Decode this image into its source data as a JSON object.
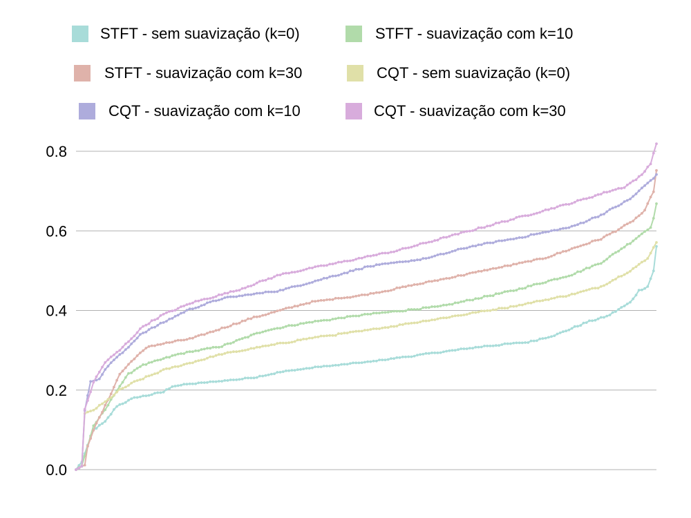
{
  "chart_data": {
    "type": "line",
    "title": "",
    "xlabel": "",
    "ylabel": "",
    "ylim": [
      0,
      0.8
    ],
    "yticks": [
      "0.0",
      "0.2",
      "0.4",
      "0.6",
      "0.8"
    ],
    "grid": "horizontal",
    "legend_position": "top",
    "x_count": 200,
    "series": [
      {
        "name": "STFT - sem suavização (k=0)",
        "color": "#a8dcd9",
        "anchors": [
          [
            0,
            0.0
          ],
          [
            2,
            0.02
          ],
          [
            4,
            0.06
          ],
          [
            6,
            0.1
          ],
          [
            10,
            0.12
          ],
          [
            14,
            0.16
          ],
          [
            20,
            0.18
          ],
          [
            30,
            0.195
          ],
          [
            33,
            0.21
          ],
          [
            60,
            0.23
          ],
          [
            70,
            0.245
          ],
          [
            80,
            0.255
          ],
          [
            100,
            0.27
          ],
          [
            120,
            0.29
          ],
          [
            140,
            0.31
          ],
          [
            155,
            0.32
          ],
          [
            165,
            0.34
          ],
          [
            175,
            0.37
          ],
          [
            182,
            0.385
          ],
          [
            190,
            0.42
          ],
          [
            193,
            0.45
          ],
          [
            196,
            0.46
          ],
          [
            198,
            0.5
          ],
          [
            199,
            0.56
          ]
        ]
      },
      {
        "name": "STFT - suavização com k=10",
        "color": "#b1dbaa",
        "anchors": [
          [
            0,
            0.0
          ],
          [
            2,
            0.01
          ],
          [
            4,
            0.06
          ],
          [
            6,
            0.11
          ],
          [
            10,
            0.15
          ],
          [
            14,
            0.2
          ],
          [
            18,
            0.24
          ],
          [
            22,
            0.26
          ],
          [
            35,
            0.29
          ],
          [
            50,
            0.31
          ],
          [
            65,
            0.35
          ],
          [
            80,
            0.37
          ],
          [
            100,
            0.39
          ],
          [
            125,
            0.41
          ],
          [
            150,
            0.45
          ],
          [
            170,
            0.49
          ],
          [
            180,
            0.52
          ],
          [
            190,
            0.57
          ],
          [
            197,
            0.61
          ],
          [
            198,
            0.63
          ],
          [
            199,
            0.67
          ]
        ]
      },
      {
        "name": "STFT - suavização com k=30",
        "color": "#dfb2aa",
        "anchors": [
          [
            0,
            0.0
          ],
          [
            3,
            0.01
          ],
          [
            4,
            0.06
          ],
          [
            6,
            0.1
          ],
          [
            10,
            0.16
          ],
          [
            15,
            0.24
          ],
          [
            20,
            0.28
          ],
          [
            25,
            0.31
          ],
          [
            40,
            0.33
          ],
          [
            60,
            0.38
          ],
          [
            80,
            0.42
          ],
          [
            100,
            0.44
          ],
          [
            120,
            0.47
          ],
          [
            140,
            0.5
          ],
          [
            160,
            0.53
          ],
          [
            180,
            0.58
          ],
          [
            190,
            0.62
          ],
          [
            195,
            0.65
          ],
          [
            198,
            0.7
          ],
          [
            199,
            0.75
          ]
        ]
      },
      {
        "name": "CQT - sem suavização (k=0)",
        "color": "#e0e0a8",
        "anchors": [
          [
            0,
            0.0
          ],
          [
            2,
            0.01
          ],
          [
            3,
            0.14
          ],
          [
            6,
            0.15
          ],
          [
            10,
            0.17
          ],
          [
            15,
            0.2
          ],
          [
            20,
            0.22
          ],
          [
            30,
            0.25
          ],
          [
            40,
            0.27
          ],
          [
            50,
            0.29
          ],
          [
            65,
            0.31
          ],
          [
            80,
            0.33
          ],
          [
            100,
            0.35
          ],
          [
            125,
            0.38
          ],
          [
            150,
            0.41
          ],
          [
            170,
            0.44
          ],
          [
            180,
            0.46
          ],
          [
            190,
            0.5
          ],
          [
            196,
            0.53
          ],
          [
            198,
            0.56
          ],
          [
            199,
            0.57
          ]
        ]
      },
      {
        "name": "CQT - suavização com k=10",
        "color": "#aeacdc",
        "anchors": [
          [
            0,
            0.0
          ],
          [
            2,
            0.01
          ],
          [
            3,
            0.15
          ],
          [
            5,
            0.22
          ],
          [
            8,
            0.23
          ],
          [
            12,
            0.27
          ],
          [
            17,
            0.3
          ],
          [
            22,
            0.34
          ],
          [
            30,
            0.37
          ],
          [
            38,
            0.4
          ],
          [
            50,
            0.43
          ],
          [
            70,
            0.45
          ],
          [
            85,
            0.48
          ],
          [
            100,
            0.51
          ],
          [
            120,
            0.53
          ],
          [
            135,
            0.56
          ],
          [
            150,
            0.58
          ],
          [
            170,
            0.61
          ],
          [
            180,
            0.64
          ],
          [
            190,
            0.68
          ],
          [
            199,
            0.74
          ]
        ]
      },
      {
        "name": "CQT - suavização com k=30",
        "color": "#d8acdc",
        "anchors": [
          [
            0,
            0.0
          ],
          [
            2,
            0.01
          ],
          [
            3,
            0.15
          ],
          [
            6,
            0.22
          ],
          [
            10,
            0.27
          ],
          [
            15,
            0.3
          ],
          [
            19,
            0.33
          ],
          [
            23,
            0.36
          ],
          [
            30,
            0.39
          ],
          [
            40,
            0.42
          ],
          [
            55,
            0.45
          ],
          [
            70,
            0.49
          ],
          [
            90,
            0.52
          ],
          [
            110,
            0.55
          ],
          [
            130,
            0.59
          ],
          [
            150,
            0.63
          ],
          [
            170,
            0.67
          ],
          [
            183,
            0.7
          ],
          [
            188,
            0.71
          ],
          [
            194,
            0.74
          ],
          [
            197,
            0.77
          ],
          [
            199,
            0.82
          ]
        ]
      }
    ]
  }
}
